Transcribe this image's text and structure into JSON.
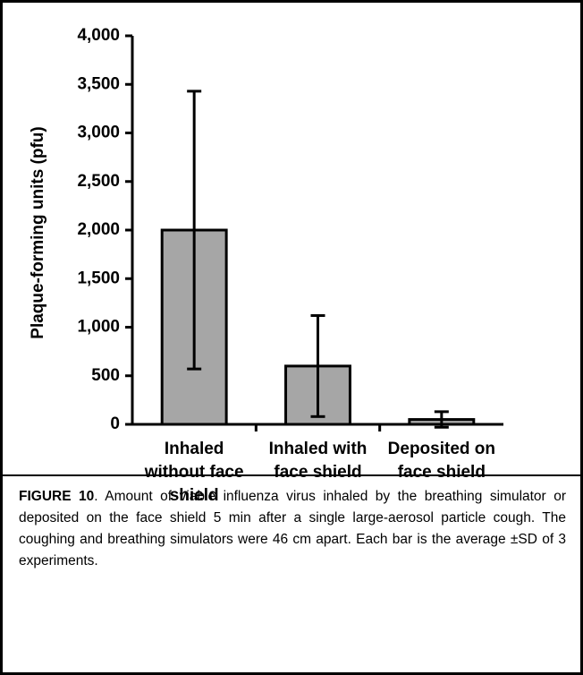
{
  "chart_data": {
    "type": "bar",
    "ylabel": "Plaque-forming units (pfu)",
    "categories": [
      "Inhaled without face shield",
      "Inhaled with face shield",
      "Deposited on face shield"
    ],
    "values": [
      2000,
      600,
      50
    ],
    "errors": [
      1430,
      520,
      80
    ],
    "color": "#a6a6a6",
    "ylim": [
      0,
      4000
    ],
    "yticks": [
      0,
      500,
      {
        "value": 1000,
        "label": "1,000"
      },
      {
        "value": 1500,
        "label": "1,500"
      },
      {
        "value": 2000,
        "label": "2,000"
      },
      {
        "value": 2500,
        "label": "2,500"
      },
      {
        "value": 3000,
        "label": "3,000"
      },
      {
        "value": 3500,
        "label": "3,500"
      },
      {
        "value": 4000,
        "label": "4,000"
      }
    ],
    "grid": false
  },
  "caption": {
    "label": "FIGURE 10",
    "text": ". Amount of viable influenza virus inhaled by the breathing simulator or deposited on the face shield 5 min after a single large-aerosol particle cough. The coughing and breathing simulators were 46 cm apart. Each bar is the average ±SD of 3 experiments."
  }
}
